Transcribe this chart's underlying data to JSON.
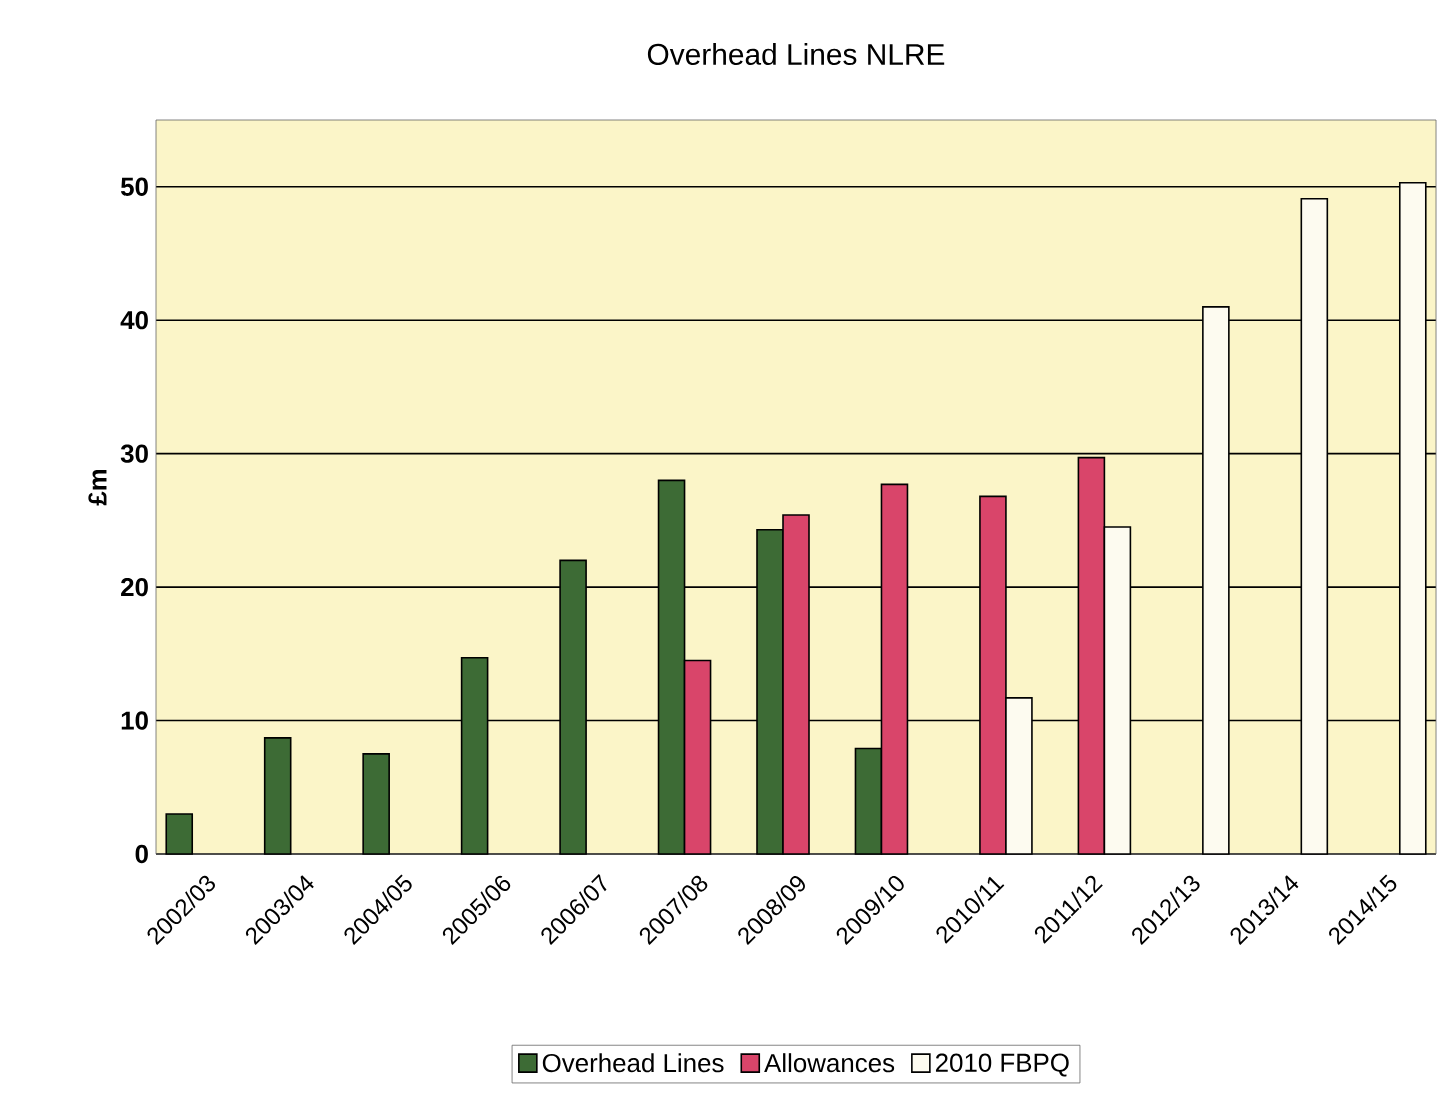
{
  "chart_data": {
    "type": "bar",
    "title": "Overhead Lines NLRE",
    "ylabel": "£m",
    "categories": [
      "2002/03",
      "2003/04",
      "2004/05",
      "2005/06",
      "2006/07",
      "2007/08",
      "2008/09",
      "2009/10",
      "2010/11",
      "2011/12",
      "2012/13",
      "2013/14",
      "2014/15"
    ],
    "series": [
      {
        "name": "Overhead Lines",
        "color": "#3d6b35",
        "values": [
          3.0,
          8.7,
          7.5,
          14.7,
          22.0,
          28.0,
          24.3,
          7.9,
          null,
          null,
          null,
          null,
          null
        ]
      },
      {
        "name": "Allowances",
        "color": "#d9456a",
        "values": [
          null,
          null,
          null,
          null,
          null,
          14.5,
          25.4,
          27.7,
          26.8,
          29.7,
          null,
          null,
          null
        ]
      },
      {
        "name": "2010 FBPQ",
        "color": "#fdfbf0",
        "values": [
          null,
          null,
          null,
          null,
          null,
          null,
          null,
          null,
          11.7,
          24.5,
          41.0,
          49.1,
          50.3
        ]
      }
    ],
    "ylim": [
      0,
      55
    ],
    "yticks": [
      0,
      10,
      20,
      30,
      40,
      50
    ],
    "grid": "y",
    "legend": "bottom"
  }
}
